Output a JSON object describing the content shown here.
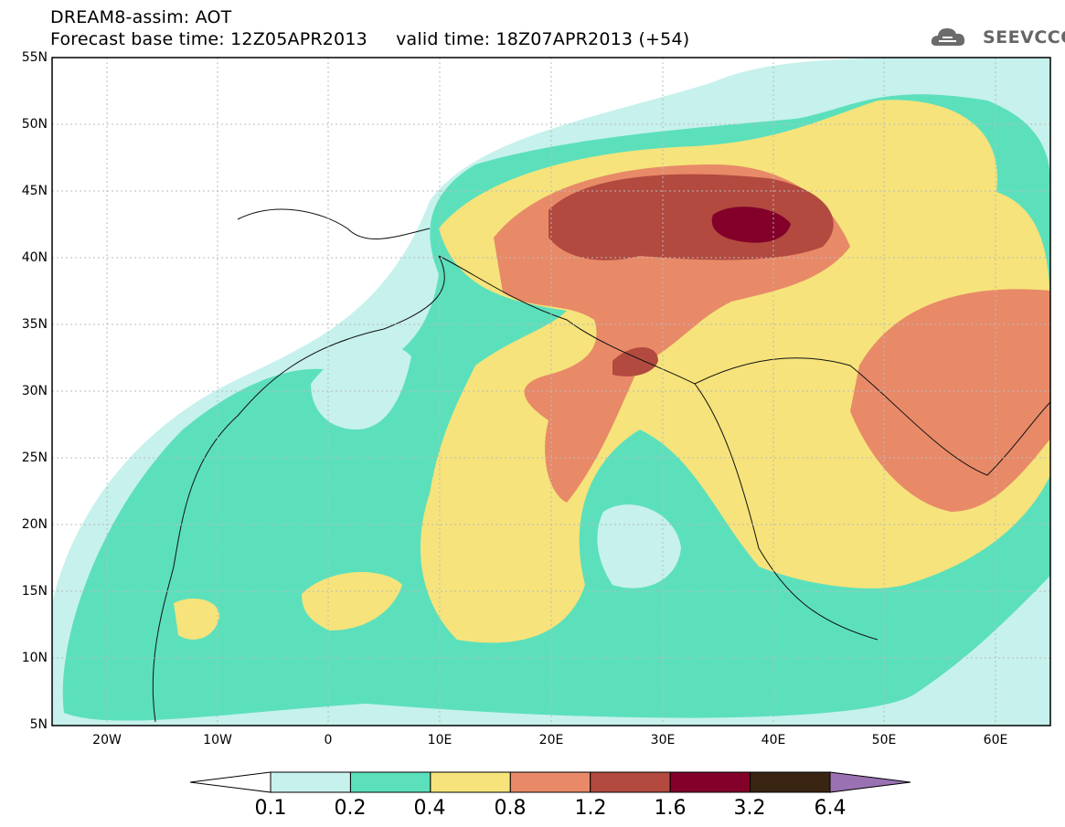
{
  "header": {
    "title": "DREAM8-assim: AOT",
    "subtitle": "Forecast base time: 12Z05APR2013     valid time: 18Z07APR2013 (+54)",
    "logo_text": "SEEVCCC"
  },
  "map": {
    "lat_labels": [
      "55N",
      "50N",
      "45N",
      "40N",
      "35N",
      "30N",
      "25N",
      "20N",
      "15N",
      "10N",
      "5N"
    ],
    "lon_labels": [
      "20W",
      "10W",
      "0",
      "10E",
      "20E",
      "30E",
      "40E",
      "50E",
      "60E"
    ],
    "lat_range": [
      5,
      55
    ],
    "lon_range": [
      -25,
      65
    ]
  },
  "legend": {
    "levels": [
      "0.1",
      "0.2",
      "0.4",
      "0.8",
      "1.2",
      "1.6",
      "3.2",
      "6.4"
    ],
    "colors": [
      "#ffffff",
      "#c6f1ec",
      "#5ce0bc",
      "#f6e37b",
      "#e88a68",
      "#b24a40",
      "#82002a",
      "#3a2412",
      "#9a72b4"
    ]
  }
}
